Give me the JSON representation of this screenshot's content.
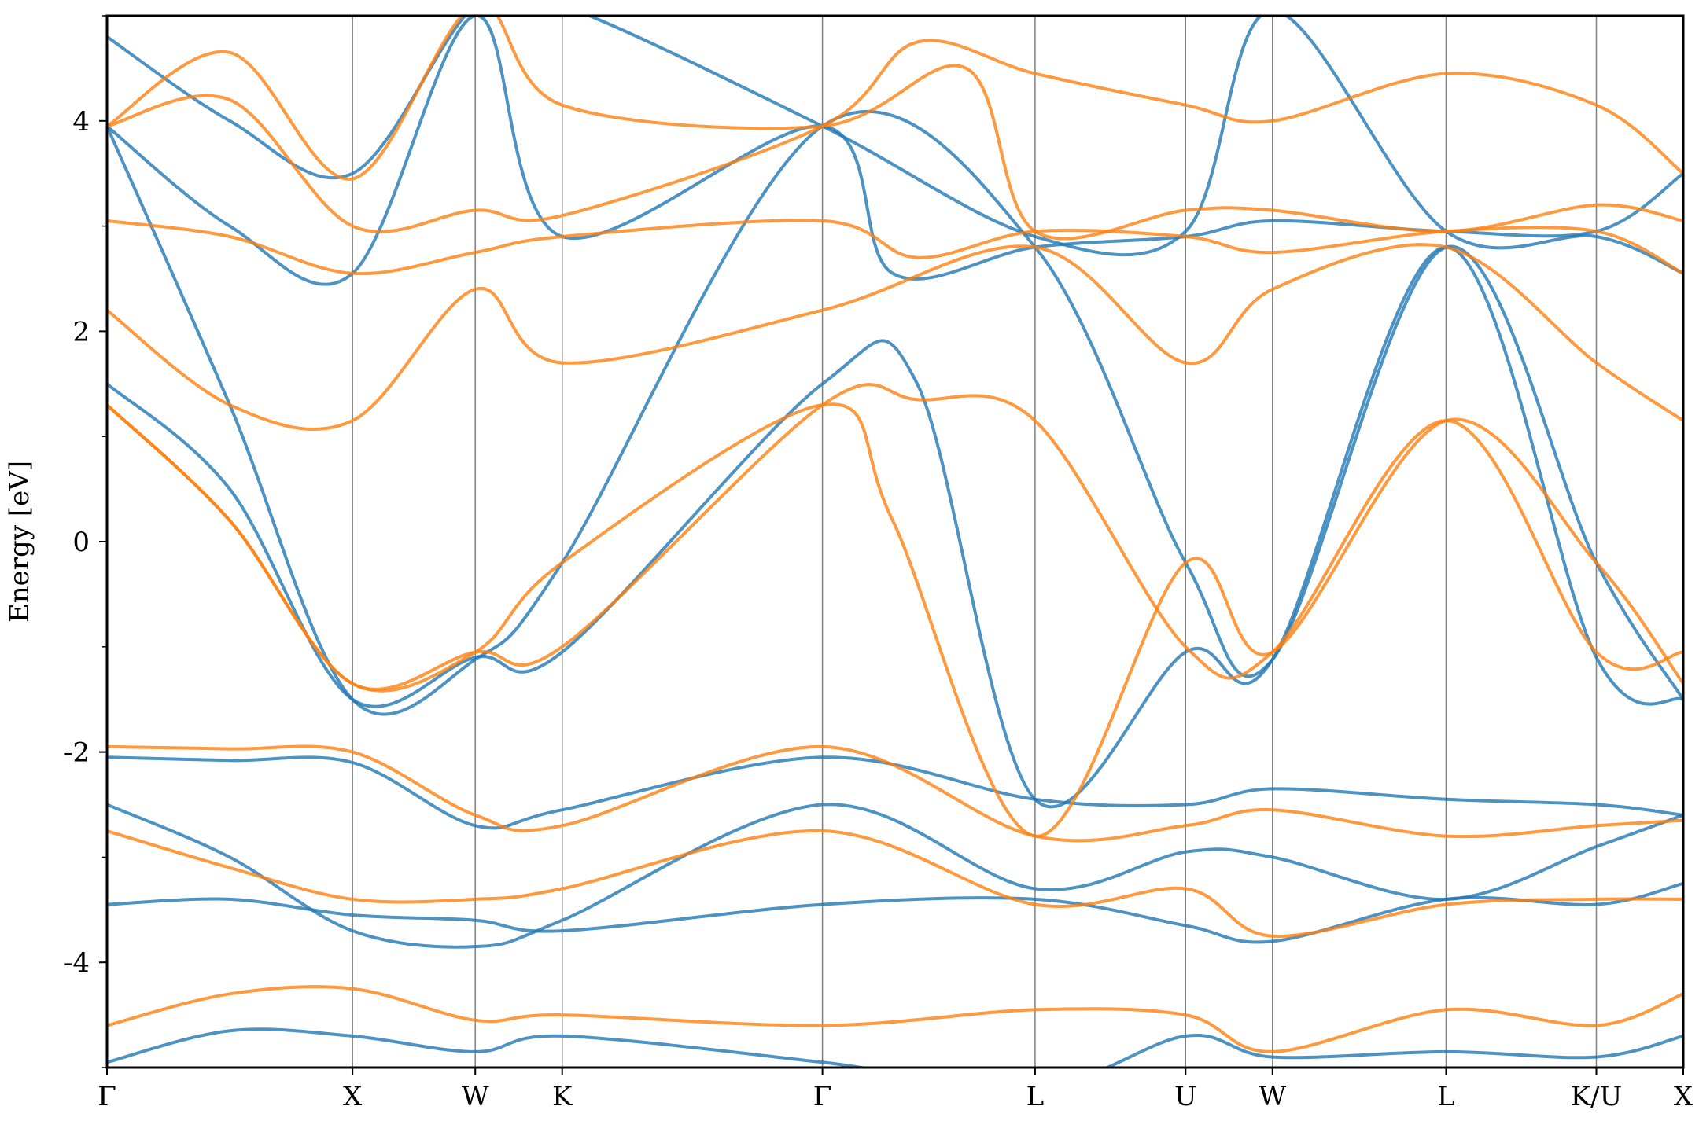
{
  "chart_data": {
    "type": "line",
    "title": "",
    "xlabel": "",
    "ylabel": "Energy [eV]",
    "ylim": [
      -5,
      5
    ],
    "y_ticks": [
      -4,
      -2,
      0,
      2,
      4
    ],
    "y_minor_ticks": [
      -5,
      -3,
      -1,
      1,
      3,
      5
    ],
    "grid": "vertical lines at high-symmetry points",
    "legend": "none",
    "colors": {
      "series_a": "#1f77b4",
      "series_b": "#ff7f0e",
      "kline": "#808080",
      "axis": "#000000"
    },
    "kpoints": [
      {
        "label": "Γ",
        "x": 0.0
      },
      {
        "label": "X",
        "x": 1.0
      },
      {
        "label": "W",
        "x": 1.5
      },
      {
        "label": "K",
        "x": 1.854
      },
      {
        "label": "Γ",
        "x": 2.914
      },
      {
        "label": "L",
        "x": 3.78
      },
      {
        "label": "U",
        "x": 4.393
      },
      {
        "label": "W",
        "x": 4.747
      },
      {
        "label": "L",
        "x": 5.454
      },
      {
        "label": "K/U",
        "x": 6.066
      },
      {
        "label": "X",
        "x": 6.42
      }
    ],
    "xlim": [
      0,
      6.42
    ],
    "series": [
      {
        "color": "#1f77b4",
        "bands": [
          [
            [
              0,
              -4.95
            ],
            [
              0.5,
              -4.65
            ],
            [
              1.0,
              -4.7
            ],
            [
              1.5,
              -4.85
            ],
            [
              1.854,
              -4.7
            ],
            [
              2.914,
              -4.95
            ],
            [
              3.78,
              -5.2
            ],
            [
              4.393,
              -4.7
            ],
            [
              4.747,
              -4.9
            ],
            [
              5.454,
              -4.85
            ],
            [
              6.066,
              -4.9
            ],
            [
              6.42,
              -4.7
            ]
          ],
          [
            [
              0,
              -3.45
            ],
            [
              0.5,
              -3.4
            ],
            [
              1.0,
              -3.55
            ],
            [
              1.5,
              -3.6
            ],
            [
              1.854,
              -3.7
            ],
            [
              2.914,
              -3.45
            ],
            [
              3.78,
              -3.4
            ],
            [
              4.393,
              -3.65
            ],
            [
              4.747,
              -3.8
            ],
            [
              5.454,
              -3.4
            ],
            [
              6.066,
              -3.45
            ],
            [
              6.42,
              -3.25
            ]
          ],
          [
            [
              0,
              -2.5
            ],
            [
              0.5,
              -3.0
            ],
            [
              1.0,
              -3.7
            ],
            [
              1.5,
              -3.85
            ],
            [
              1.854,
              -3.6
            ],
            [
              2.914,
              -2.5
            ],
            [
              3.78,
              -3.3
            ],
            [
              4.393,
              -2.95
            ],
            [
              4.747,
              -3.0
            ],
            [
              5.454,
              -3.4
            ],
            [
              6.066,
              -2.9
            ],
            [
              6.42,
              -2.6
            ]
          ],
          [
            [
              0,
              -2.05
            ],
            [
              0.5,
              -2.08
            ],
            [
              1.0,
              -2.1
            ],
            [
              1.5,
              -2.7
            ],
            [
              1.854,
              -2.55
            ],
            [
              2.914,
              -2.05
            ],
            [
              3.78,
              -2.45
            ],
            [
              4.393,
              -2.5
            ],
            [
              4.747,
              -2.35
            ],
            [
              5.454,
              -2.45
            ],
            [
              6.066,
              -2.5
            ],
            [
              6.42,
              -2.6
            ]
          ],
          [
            [
              0,
              1.5
            ],
            [
              0.5,
              0.5
            ],
            [
              1.0,
              -1.5
            ],
            [
              1.5,
              -1.1
            ],
            [
              1.854,
              -1.05
            ],
            [
              2.914,
              1.5
            ],
            [
              3.3,
              1.5
            ],
            [
              3.78,
              -2.45
            ],
            [
              4.393,
              -1.05
            ],
            [
              4.747,
              -1.12
            ],
            [
              5.454,
              2.8
            ],
            [
              6.066,
              -1.1
            ],
            [
              6.42,
              -1.5
            ]
          ],
          [
            [
              0,
              3.95
            ],
            [
              0.5,
              1.3
            ],
            [
              1.0,
              -1.5
            ],
            [
              1.5,
              -1.12
            ],
            [
              1.854,
              -0.2
            ],
            [
              2.914,
              3.95
            ],
            [
              3.78,
              2.8
            ],
            [
              4.393,
              -0.2
            ],
            [
              4.747,
              -1.12
            ],
            [
              5.454,
              2.8
            ],
            [
              6.066,
              -0.2
            ],
            [
              6.42,
              -1.5
            ]
          ],
          [
            [
              0,
              4.8
            ],
            [
              0.5,
              4.0
            ],
            [
              1.0,
              3.5
            ],
            [
              1.5,
              5.1
            ],
            [
              1.854,
              5.1
            ],
            [
              2.914,
              3.95
            ],
            [
              3.78,
              2.9
            ],
            [
              4.393,
              2.95
            ],
            [
              4.747,
              5.05
            ],
            [
              5.454,
              2.95
            ],
            [
              6.066,
              2.9
            ],
            [
              6.42,
              2.55
            ]
          ],
          [
            [
              0,
              3.95
            ],
            [
              0.5,
              3.0
            ],
            [
              1.0,
              2.55
            ],
            [
              1.5,
              5.0
            ],
            [
              1.854,
              2.9
            ],
            [
              2.914,
              3.95
            ],
            [
              3.2,
              2.55
            ],
            [
              3.78,
              2.8
            ],
            [
              4.393,
              2.9
            ],
            [
              4.747,
              3.05
            ],
            [
              5.454,
              2.95
            ],
            [
              6.066,
              2.95
            ],
            [
              6.42,
              3.5
            ]
          ]
        ]
      },
      {
        "color": "#ff7f0e",
        "bands": [
          [
            [
              0,
              -4.6
            ],
            [
              0.5,
              -4.3
            ],
            [
              1.0,
              -4.25
            ],
            [
              1.5,
              -4.55
            ],
            [
              1.854,
              -4.5
            ],
            [
              2.914,
              -4.6
            ],
            [
              3.78,
              -4.45
            ],
            [
              4.393,
              -4.5
            ],
            [
              4.747,
              -4.85
            ],
            [
              5.454,
              -4.45
            ],
            [
              6.066,
              -4.6
            ],
            [
              6.42,
              -4.3
            ]
          ],
          [
            [
              0,
              -2.75
            ],
            [
              0.5,
              -3.1
            ],
            [
              1.0,
              -3.4
            ],
            [
              1.5,
              -3.4
            ],
            [
              1.854,
              -3.3
            ],
            [
              2.914,
              -2.75
            ],
            [
              3.78,
              -3.45
            ],
            [
              4.393,
              -3.3
            ],
            [
              4.747,
              -3.75
            ],
            [
              5.454,
              -3.45
            ],
            [
              6.066,
              -3.4
            ],
            [
              6.42,
              -3.4
            ]
          ],
          [
            [
              0,
              -1.95
            ],
            [
              0.5,
              -1.97
            ],
            [
              1.0,
              -2.0
            ],
            [
              1.5,
              -2.6
            ],
            [
              1.854,
              -2.7
            ],
            [
              2.914,
              -1.95
            ],
            [
              3.78,
              -2.8
            ],
            [
              4.393,
              -2.7
            ],
            [
              4.747,
              -2.55
            ],
            [
              5.454,
              -2.8
            ],
            [
              6.066,
              -2.7
            ],
            [
              6.42,
              -2.65
            ]
          ],
          [
            [
              0,
              1.3
            ],
            [
              0.5,
              0.2
            ],
            [
              1.0,
              -1.35
            ],
            [
              1.5,
              -1.05
            ],
            [
              1.854,
              -1.0
            ],
            [
              2.914,
              1.3
            ],
            [
              3.3,
              1.35
            ],
            [
              3.78,
              1.15
            ],
            [
              4.393,
              -1.0
            ],
            [
              4.747,
              -1.05
            ],
            [
              5.454,
              1.15
            ],
            [
              6.066,
              -1.05
            ],
            [
              6.42,
              -1.05
            ]
          ],
          [
            [
              0,
              1.3
            ],
            [
              0.5,
              0.2
            ],
            [
              1.0,
              -1.35
            ],
            [
              1.5,
              -1.05
            ],
            [
              1.854,
              -0.2
            ],
            [
              2.914,
              1.3
            ],
            [
              3.2,
              0.2
            ],
            [
              3.78,
              -2.8
            ],
            [
              4.393,
              -0.2
            ],
            [
              4.747,
              -1.05
            ],
            [
              5.454,
              1.15
            ],
            [
              6.066,
              -0.2
            ],
            [
              6.42,
              -1.35
            ]
          ],
          [
            [
              0,
              2.2
            ],
            [
              0.5,
              1.3
            ],
            [
              1.0,
              1.15
            ],
            [
              1.5,
              2.4
            ],
            [
              1.854,
              1.7
            ],
            [
              2.914,
              2.2
            ],
            [
              3.78,
              2.8
            ],
            [
              4.393,
              1.7
            ],
            [
              4.747,
              2.4
            ],
            [
              5.454,
              2.8
            ],
            [
              6.066,
              1.7
            ],
            [
              6.42,
              1.15
            ]
          ],
          [
            [
              0,
              3.05
            ],
            [
              0.5,
              2.9
            ],
            [
              1.0,
              2.55
            ],
            [
              1.5,
              2.75
            ],
            [
              1.854,
              2.9
            ],
            [
              2.914,
              3.05
            ],
            [
              3.3,
              2.7
            ],
            [
              3.78,
              2.95
            ],
            [
              4.393,
              2.9
            ],
            [
              4.747,
              2.75
            ],
            [
              5.454,
              2.95
            ],
            [
              6.066,
              2.95
            ],
            [
              6.42,
              2.55
            ]
          ],
          [
            [
              0,
              3.95
            ],
            [
              0.5,
              4.2
            ],
            [
              1.0,
              3.0
            ],
            [
              1.5,
              3.15
            ],
            [
              1.854,
              3.1
            ],
            [
              2.914,
              3.95
            ],
            [
              3.3,
              4.75
            ],
            [
              3.78,
              4.45
            ],
            [
              4.393,
              4.15
            ],
            [
              4.747,
              4.0
            ],
            [
              5.454,
              4.45
            ],
            [
              6.066,
              4.15
            ],
            [
              6.42,
              3.5
            ]
          ],
          [
            [
              0,
              3.95
            ],
            [
              0.5,
              4.65
            ],
            [
              1.0,
              3.45
            ],
            [
              1.5,
              5.1
            ],
            [
              1.854,
              4.15
            ],
            [
              2.914,
              3.95
            ],
            [
              3.5,
              4.5
            ],
            [
              3.78,
              2.95
            ],
            [
              4.393,
              3.15
            ],
            [
              4.747,
              3.15
            ],
            [
              5.454,
              2.95
            ],
            [
              6.066,
              3.2
            ],
            [
              6.42,
              3.05
            ]
          ]
        ]
      }
    ]
  }
}
